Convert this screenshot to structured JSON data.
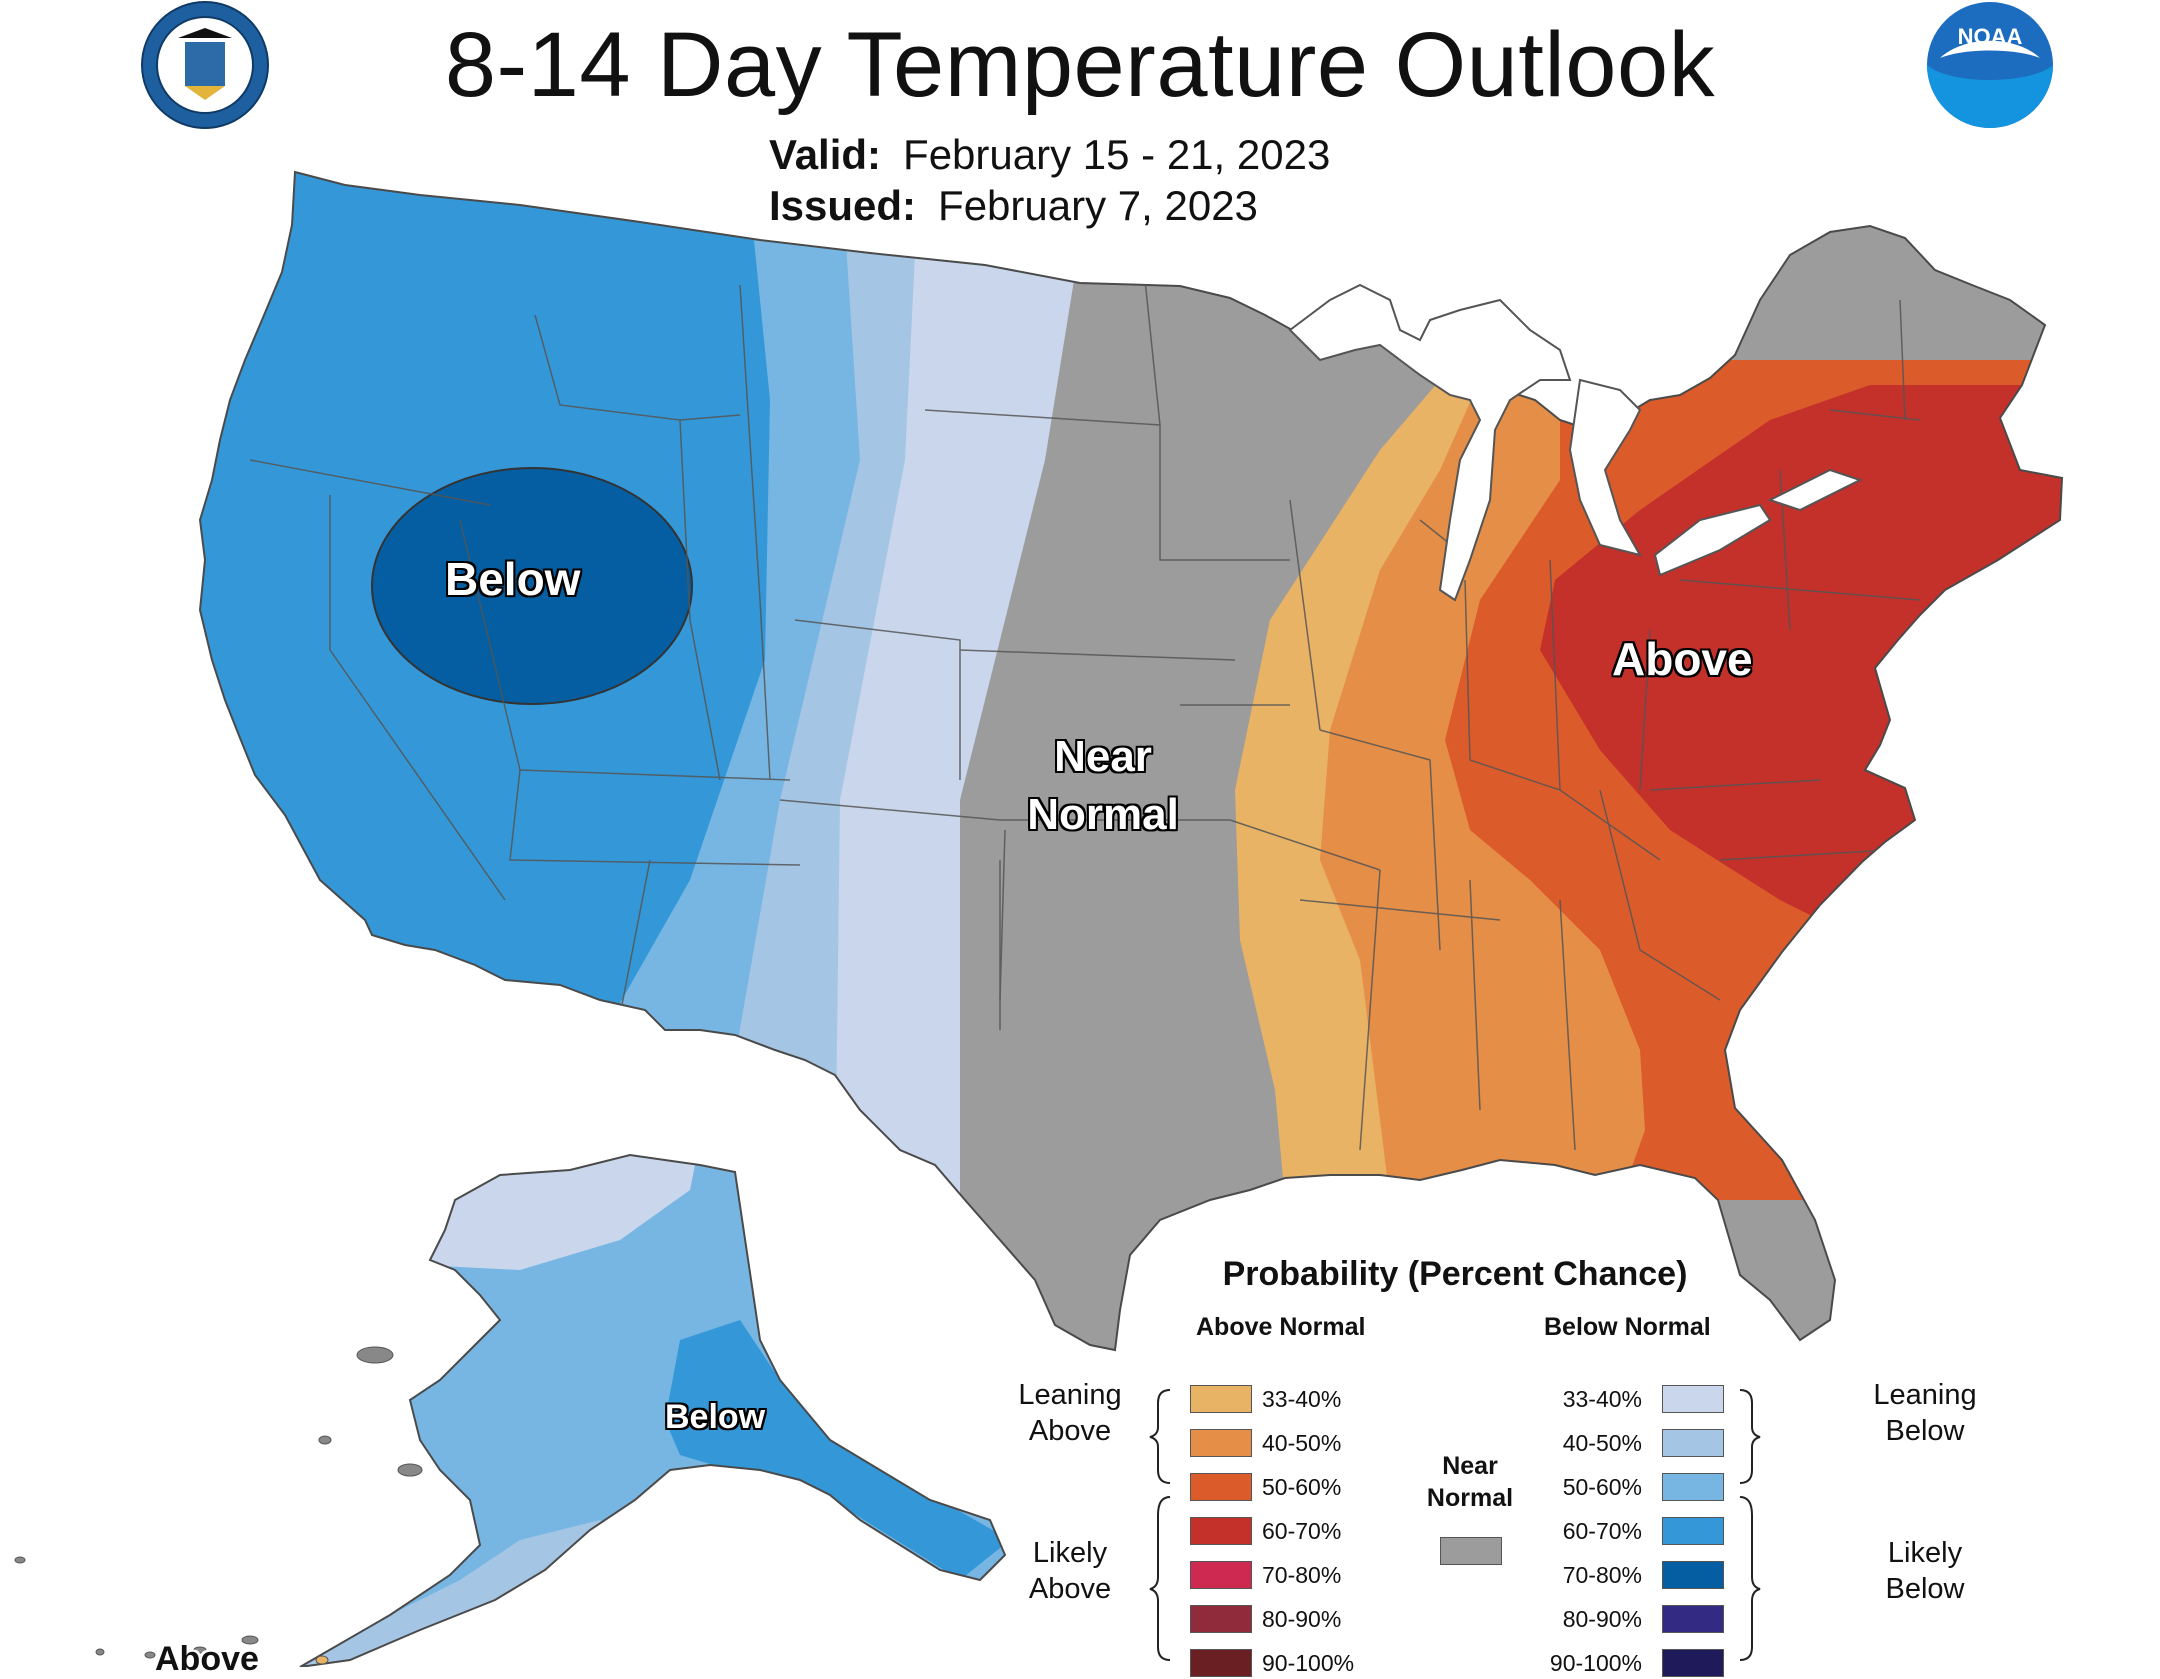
{
  "title": "8-14 Day Temperature Outlook",
  "valid_label": "Valid:",
  "valid_value": "February 15 - 21, 2023",
  "issued_label": "Issued:",
  "issued_value": "February 7, 2023",
  "map_labels": {
    "below_west": "Below",
    "near_normal": "Near Normal",
    "above_east": "Above",
    "below_alaska": "Below",
    "above_aleutians": "Above"
  },
  "legend": {
    "title": "Probability (Percent Chance)",
    "above_header": "Above Normal",
    "below_header": "Below Normal",
    "near_header": "Near Normal",
    "leaning_above": "Leaning Above",
    "likely_above": "Likely Above",
    "leaning_below": "Leaning Below",
    "likely_below": "Likely Below",
    "above_categories": [
      {
        "label": "33-40%",
        "color": "#E9B366"
      },
      {
        "label": "40-50%",
        "color": "#E48E47"
      },
      {
        "label": "50-60%",
        "color": "#DC5B2B"
      },
      {
        "label": "60-70%",
        "color": "#C4302A"
      },
      {
        "label": "70-80%",
        "color": "#CE2A51"
      },
      {
        "label": "80-90%",
        "color": "#8F2B3B"
      },
      {
        "label": "90-100%",
        "color": "#6A1F22"
      }
    ],
    "below_categories": [
      {
        "label": "33-40%",
        "color": "#C9D6EB"
      },
      {
        "label": "40-50%",
        "color": "#A5C5E5"
      },
      {
        "label": "50-60%",
        "color": "#77B6E2"
      },
      {
        "label": "60-70%",
        "color": "#3498D8"
      },
      {
        "label": "70-80%",
        "color": "#045EA1"
      },
      {
        "label": "80-90%",
        "color": "#332B83"
      },
      {
        "label": "90-100%",
        "color": "#1F1B5A"
      }
    ],
    "near_color": "#9C9C9C"
  }
}
